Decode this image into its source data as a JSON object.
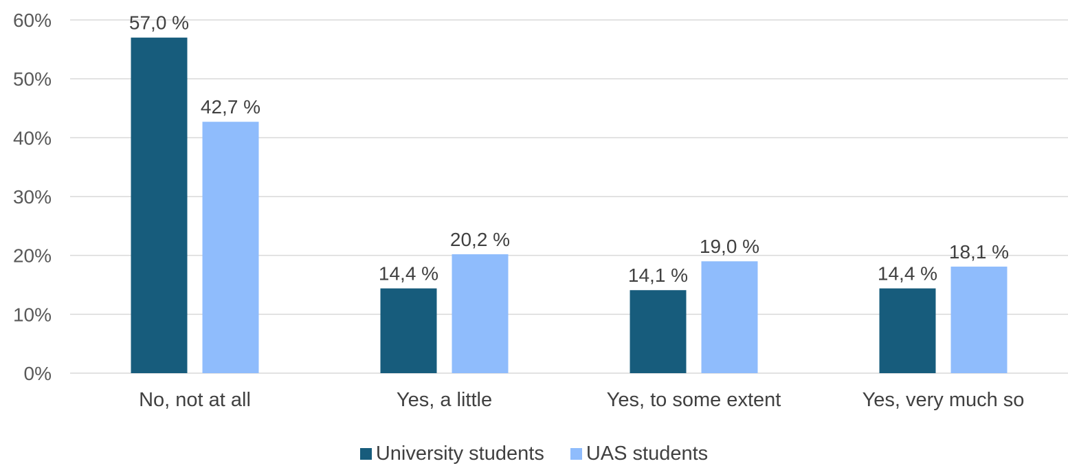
{
  "chart_data": {
    "type": "bar",
    "title": "",
    "xlabel": "",
    "ylabel": "",
    "categories": [
      "No, not at all",
      "Yes, a little",
      "Yes, to some extent",
      "Yes, very much so"
    ],
    "series": [
      {
        "name": "University students",
        "color": "#175c7c",
        "values": [
          57.0,
          14.4,
          14.1,
          14.4
        ],
        "labels": [
          "57,0 %",
          "14,4 %",
          "14,1 %",
          "14,4 %"
        ]
      },
      {
        "name": "UAS students",
        "color": "#8fbcfc",
        "values": [
          42.7,
          20.2,
          19.0,
          18.1
        ],
        "labels": [
          "42,7 %",
          "20,2 %",
          "19,0 %",
          "18,1 %"
        ]
      }
    ],
    "ylim": [
      0,
      60
    ],
    "yticks": [
      0,
      10,
      20,
      30,
      40,
      50,
      60
    ],
    "ytick_labels": [
      "0%",
      "10%",
      "20%",
      "30%",
      "40%",
      "50%",
      "60%"
    ],
    "grid": true,
    "legend_position": "bottom-center"
  }
}
